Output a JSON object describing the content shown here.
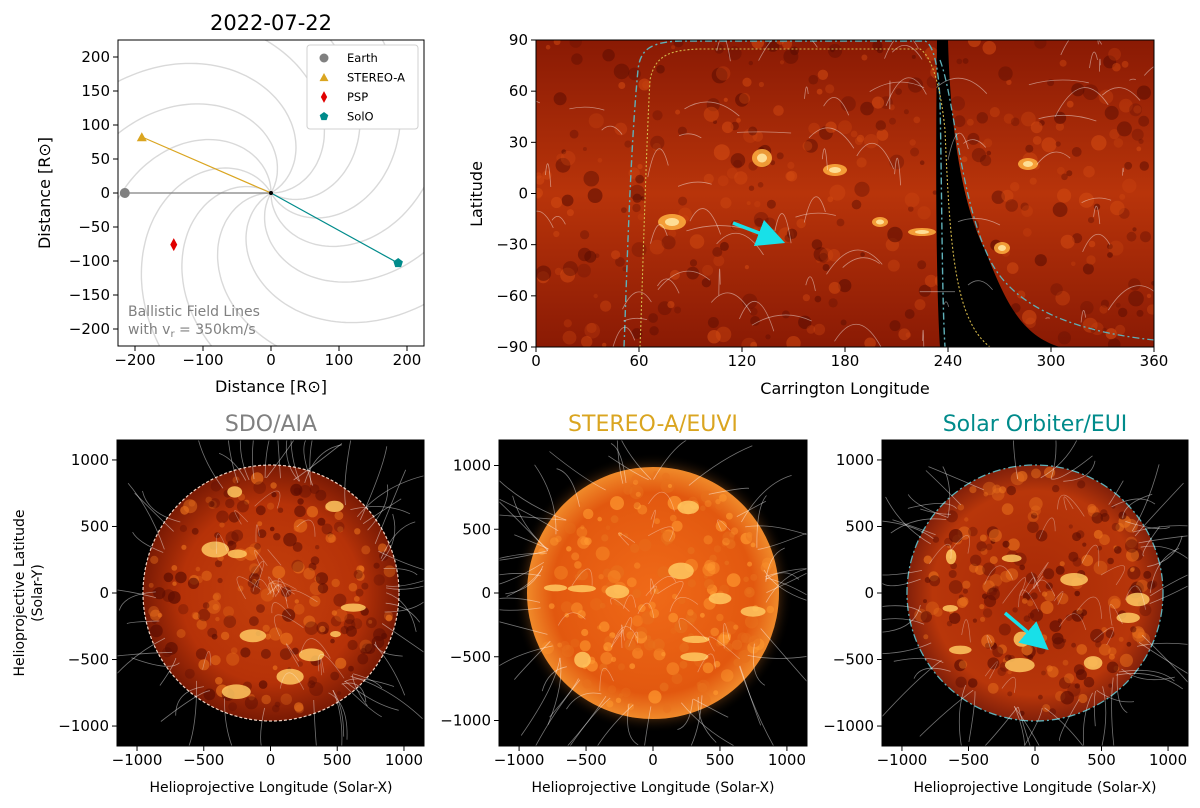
{
  "figure": {
    "orbit_title": "2022-07-22",
    "orbit_xlabel": "Distance [R⊙]",
    "orbit_ylabel": "Distance [R⊙]",
    "orbit_annotation_line1": "Ballistic Field Lines",
    "orbit_annotation_line2": "with v",
    "orbit_annotation_sub": "r",
    "orbit_annotation_rest": " = 350km/s",
    "synoptic_xlabel": "Carrington Longitude",
    "synoptic_ylabel": "Latitude",
    "disk_xlabel": "Helioprojective Longitude (Solar-X)",
    "disk_ylabel_line1": "Helioprojective Latitude",
    "disk_ylabel_line2": "(Solar-Y)",
    "disk_titles": [
      "SDO/AIA",
      "STEREO-A/EUVI",
      "Solar Orbiter/EUI"
    ]
  },
  "colors": {
    "earth": "#808080",
    "stereo_a": "#daa520",
    "psp": "#e00000",
    "solo": "#008b8b",
    "arrow": "#18e0e8",
    "sun_bright": "#ffb040",
    "sun_dark": "#7a1200",
    "coronal_hole": "#000000"
  },
  "chart_data": [
    {
      "type": "scatter",
      "title": "2022-07-22",
      "xlabel": "Distance [R⊙]",
      "ylabel": "Distance [R⊙]",
      "xlim": [
        -225,
        225
      ],
      "ylim": [
        -225,
        225
      ],
      "xticks": [
        -200,
        -100,
        0,
        100,
        200
      ],
      "yticks": [
        -200,
        -150,
        -100,
        -50,
        0,
        50,
        100,
        150,
        200
      ],
      "legend_position": "top-right",
      "series": [
        {
          "name": "Earth",
          "marker": "circle",
          "x": -215,
          "y": 0
        },
        {
          "name": "STEREO-A",
          "marker": "triangle",
          "x": -190,
          "y": 82
        },
        {
          "name": "PSP",
          "marker": "diamond",
          "x": -143,
          "y": -76
        },
        {
          "name": "SolO",
          "marker": "pentagon",
          "x": 187,
          "y": -103
        }
      ],
      "annotations": [
        "Ballistic Field Lines",
        "with v_r = 350km/s"
      ]
    },
    {
      "type": "heatmap",
      "xlabel": "Carrington Longitude",
      "ylabel": "Latitude",
      "xlim": [
        0,
        360
      ],
      "ylim": [
        -90,
        90
      ],
      "xticks": [
        0,
        60,
        120,
        180,
        240,
        300,
        360
      ],
      "yticks": [
        -90,
        -60,
        -30,
        0,
        30,
        60,
        90
      ],
      "coronal_hole_longitude": [
        238,
        260
      ],
      "arrow": {
        "from": [
          115,
          -17
        ],
        "to": [
          142,
          -27
        ]
      }
    },
    {
      "type": "heatmap",
      "title": "SDO/AIA",
      "xlabel": "Helioprojective Longitude (Solar-X)",
      "ylabel": "Helioprojective Latitude (Solar-Y)",
      "xlim": [
        -1150,
        1150
      ],
      "ylim": [
        -1150,
        1150
      ],
      "xticks": [
        -1000,
        -500,
        0,
        500,
        1000
      ],
      "yticks": [
        -1000,
        -500,
        0,
        500,
        1000
      ]
    },
    {
      "type": "heatmap",
      "title": "STEREO-A/EUVI",
      "xlabel": "Helioprojective Longitude (Solar-X)",
      "xlim": [
        -1150,
        1150
      ],
      "ylim": [
        -1200,
        1200
      ],
      "xticks": [
        -1000,
        -500,
        0,
        500,
        1000
      ],
      "yticks": [
        -1000,
        -500,
        0,
        500,
        1000
      ]
    },
    {
      "type": "heatmap",
      "title": "Solar Orbiter/EUI",
      "xlabel": "Helioprojective Longitude (Solar-X)",
      "xlim": [
        -1150,
        1150
      ],
      "ylim": [
        -1150,
        1150
      ],
      "xticks": [
        -1000,
        -500,
        0,
        500,
        1000
      ],
      "yticks": [
        -1000,
        -500,
        0,
        500,
        1000
      ],
      "arrow": {
        "from": [
          -230,
          -150
        ],
        "to": [
          70,
          -420
        ]
      }
    }
  ]
}
